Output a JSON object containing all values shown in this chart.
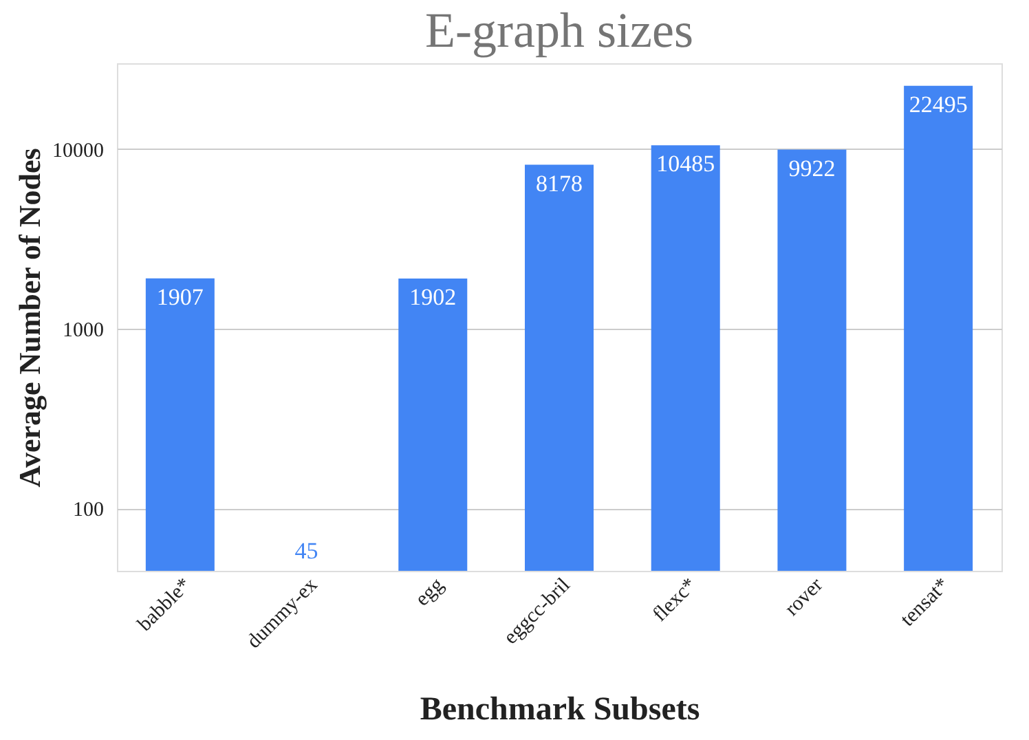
{
  "chart_data": {
    "type": "bar",
    "title": "E-graph sizes",
    "xlabel": "Benchmark Subsets",
    "ylabel": "Average Number of Nodes",
    "categories": [
      "babble*",
      "dummy-ex",
      "egg",
      "eggcc-bril",
      "flexc*",
      "rover",
      "tensat*"
    ],
    "values": [
      1907,
      45,
      1902,
      8178,
      10485,
      9922,
      22495
    ],
    "color": "#4285f4",
    "log": true,
    "ylim": [
      45,
      30000
    ],
    "yticks": [
      100,
      1000,
      10000
    ],
    "grid": "y",
    "data_labels": true
  }
}
